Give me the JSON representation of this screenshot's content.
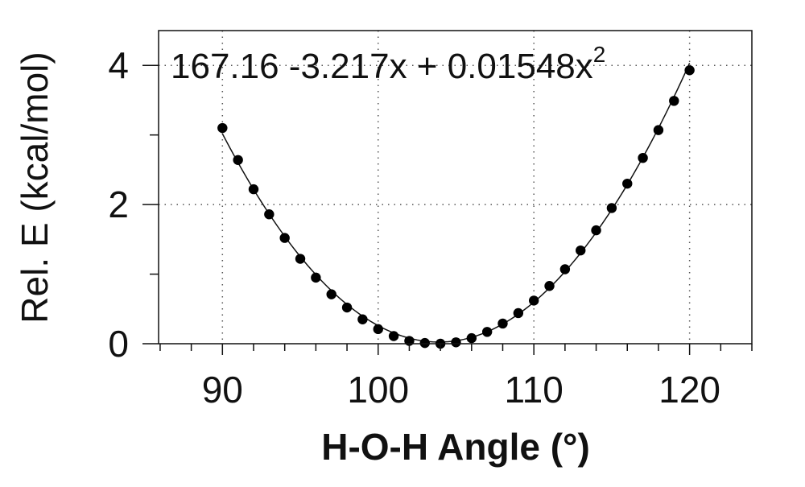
{
  "chart_data": {
    "type": "scatter",
    "title": "",
    "xlabel": "H-O-H Angle (°)",
    "ylabel": "Rel. E (kcal/mol)",
    "xlim": [
      85.9,
      124.0
    ],
    "ylim": [
      0,
      4.5
    ],
    "x_ticks": [
      90,
      100,
      110,
      120
    ],
    "y_ticks": [
      0,
      2,
      4
    ],
    "grid": "dotted",
    "annotation": {
      "text": "167.16 -3.217x + 0.01548x",
      "superscript": "2"
    },
    "fit": {
      "type": "quadratic",
      "coefficients": [
        167.16,
        -3.217,
        0.01548
      ],
      "x_range": [
        90,
        120
      ]
    },
    "series": [
      {
        "x": [
          90,
          91,
          92,
          93,
          94,
          95,
          96,
          97,
          98,
          99,
          100,
          101,
          102,
          103,
          104,
          105,
          106,
          107,
          108,
          109,
          110,
          111,
          112,
          113,
          114,
          115,
          116,
          117,
          118,
          119,
          120
        ],
        "y": [
          3.1,
          2.64,
          2.22,
          1.86,
          1.52,
          1.22,
          0.95,
          0.71,
          0.52,
          0.35,
          0.21,
          0.11,
          0.04,
          0.01,
          0.0,
          0.02,
          0.08,
          0.17,
          0.29,
          0.44,
          0.62,
          0.83,
          1.07,
          1.34,
          1.63,
          1.95,
          2.3,
          2.67,
          3.07,
          3.49,
          3.93
        ]
      }
    ]
  }
}
